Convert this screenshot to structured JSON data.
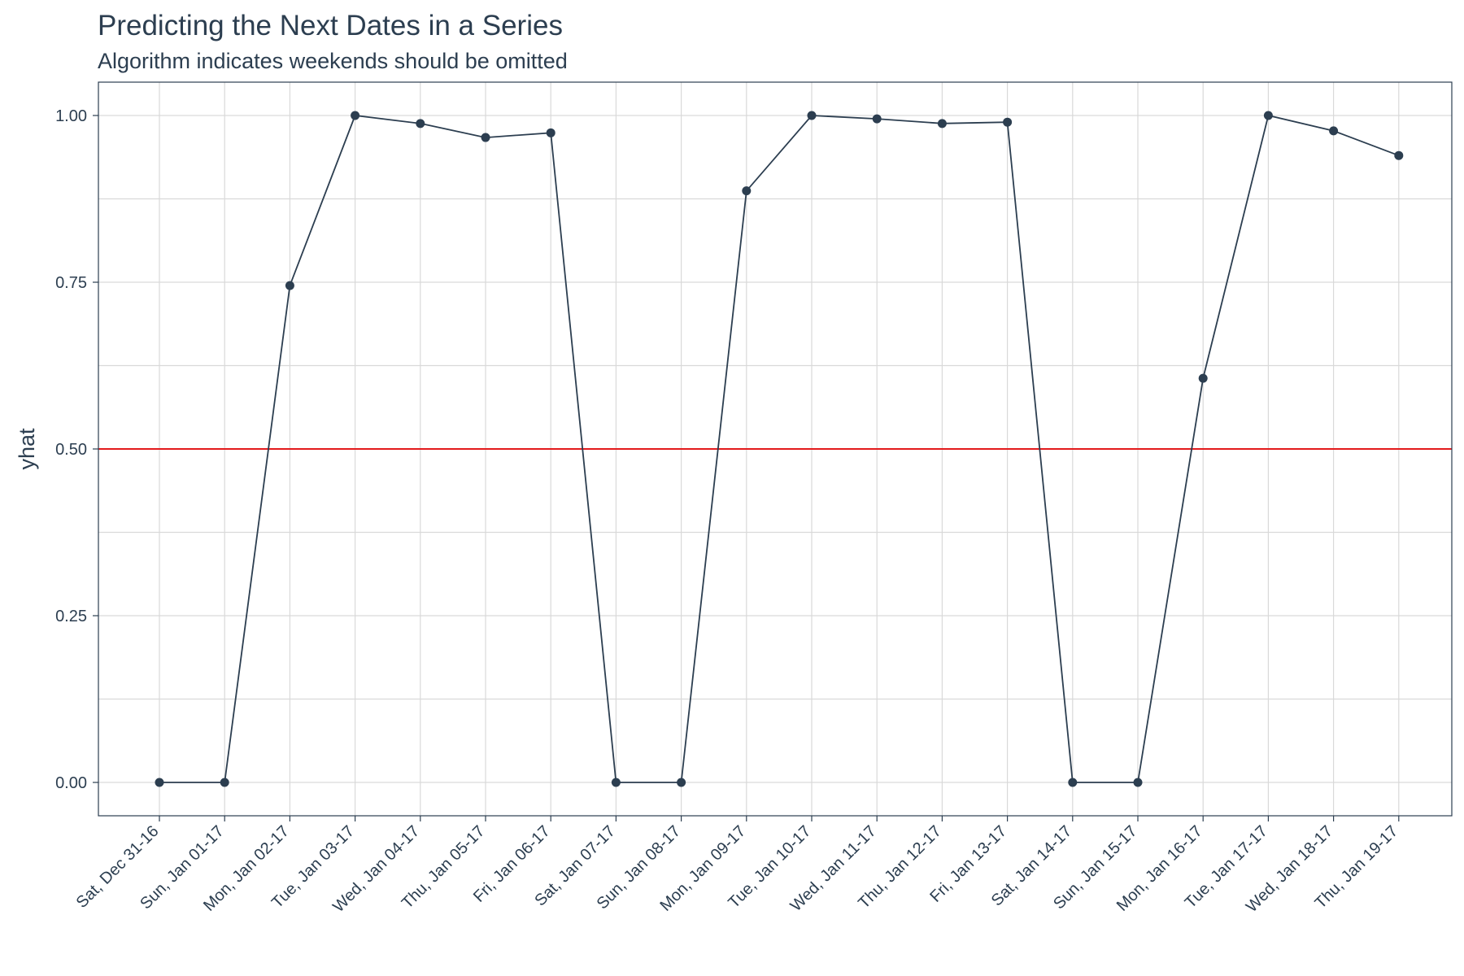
{
  "chart_data": {
    "type": "line",
    "title": "Predicting the Next Dates in a Series",
    "subtitle": "Algorithm indicates weekends should be omitted",
    "xlabel": "",
    "ylabel": "yhat",
    "ylim": [
      -0.05,
      1.05
    ],
    "yticks": [
      "0.00",
      "0.25",
      "0.50",
      "0.75",
      "1.00"
    ],
    "categories": [
      "Sat, Dec 31-16",
      "Sun, Jan 01-17",
      "Mon, Jan 02-17",
      "Tue, Jan 03-17",
      "Wed, Jan 04-17",
      "Thu, Jan 05-17",
      "Fri, Jan 06-17",
      "Sat, Jan 07-17",
      "Sun, Jan 08-17",
      "Mon, Jan 09-17",
      "Tue, Jan 10-17",
      "Wed, Jan 11-17",
      "Thu, Jan 12-17",
      "Fri, Jan 13-17",
      "Sat, Jan 14-17",
      "Sun, Jan 15-17",
      "Mon, Jan 16-17",
      "Tue, Jan 17-17",
      "Wed, Jan 18-17",
      "Thu, Jan 19-17"
    ],
    "series": [
      {
        "values": [
          0.0,
          0.0,
          0.745,
          1.0,
          0.988,
          0.967,
          0.974,
          0.0,
          0.0,
          0.887,
          1.0,
          0.995,
          0.988,
          0.99,
          0.0,
          0.0,
          0.606,
          1.0,
          0.977,
          0.94
        ]
      }
    ],
    "reference_line": {
      "y": 0.5
    },
    "grid": true,
    "colors": {
      "line": "#2c3e50",
      "reference": "#e31a1c",
      "grid": "#d9d9d9",
      "border": "#2c3e50",
      "text": "#2c3e50"
    }
  }
}
